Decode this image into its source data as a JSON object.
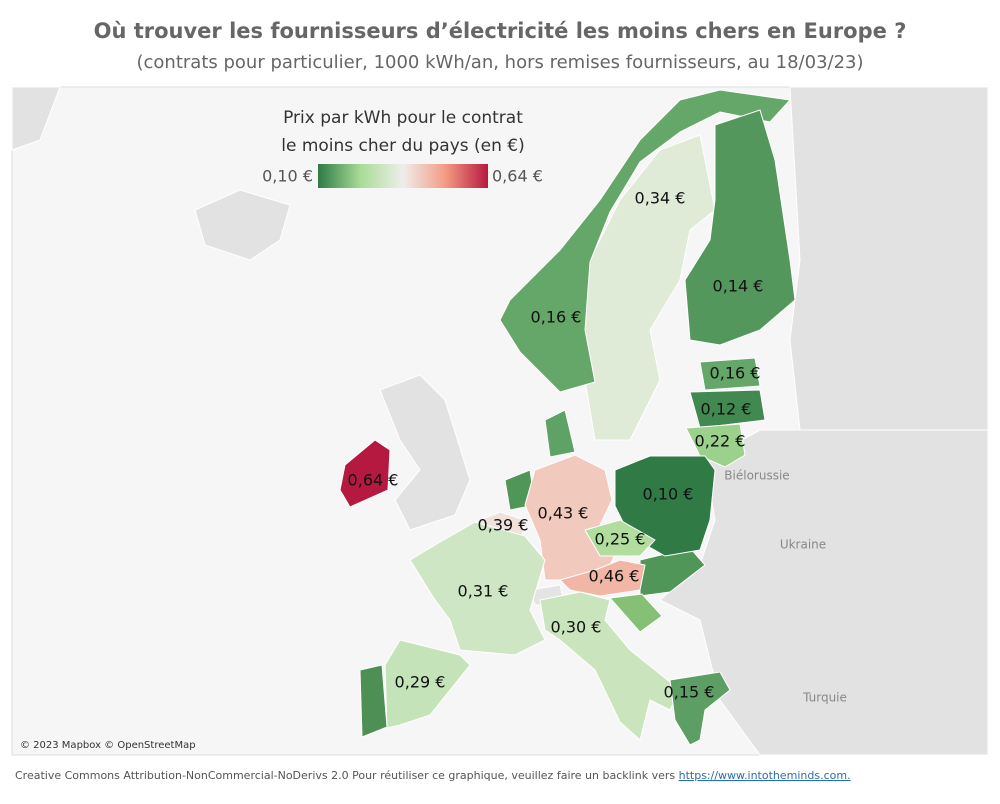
{
  "chart_data": {
    "type": "choropleth",
    "title": "Où trouver les fournisseurs d’électricité les moins chers en Europe ?",
    "subtitle": "(contrats pour particulier, 1000 kWh/an, hors remises fournisseurs, au 18/03/23)",
    "legend_title": [
      "Prix par kWh pour le contrat",
      "le moins cher du pays (en €)"
    ],
    "cticks": [
      {
        "value": 0.1,
        "label": "0,10 €"
      },
      {
        "value": 0.64,
        "label": "0,64 €"
      }
    ],
    "colorscale": [
      "#2f7a45",
      "#a9dc96",
      "#eeeeea",
      "#f49a84",
      "#b5193f"
    ],
    "values": [
      0.34,
      0.16,
      0.14,
      0.16,
      0.12,
      0.22,
      0.1,
      0.64,
      0.43,
      0.39,
      0.25,
      0.46,
      0.31,
      0.3,
      0.29,
      0.15
    ],
    "value_labels": [
      "0,34 €",
      "0,16 €",
      "0,14 €",
      "0,16 €",
      "0,12 €",
      "0,22 €",
      "0,10 €",
      "0,64 €",
      "0,43 €",
      "0,39 €",
      "0,25 €",
      "0,46 €",
      "0,31 €",
      "0,30 €",
      "0,29 €",
      "0,15 €"
    ],
    "map_labels": [
      "Biélorussie",
      "Ukraine",
      "Turquie"
    ],
    "attribution": "© 2023 Mapbox © OpenStreetMap",
    "footer": {
      "text": "Creative Commons Attribution-NonCommercial-NoDerivs 2.0 Pour réutiliser ce graphique, veuillez faire un backlink vers",
      "link": "https://www.intotheminds.com."
    }
  }
}
